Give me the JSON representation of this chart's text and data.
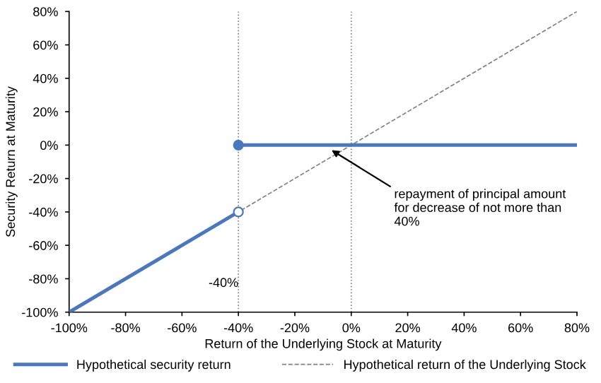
{
  "chart_data": {
    "type": "line",
    "xlabel": "Return of the Underlying Stock at Maturity",
    "ylabel": "Security Return at Maturity",
    "series": [
      {
        "name": "Hypothetical security return",
        "color": "#4a78c0",
        "x": [
          -100,
          -40
        ],
        "values": [
          -100,
          -40
        ],
        "line_style": "solid"
      },
      {
        "color": "#4a78c0",
        "x": [
          -40,
          80
        ],
        "values": [
          0,
          0
        ],
        "line_style": "solid"
      },
      {
        "name": "Hypothetical return of the Underlying Stock",
        "color": "#808080",
        "x": [
          -100,
          80
        ],
        "values": [
          -100,
          80
        ],
        "line_style": "dashed"
      },
      {
        "type": "scatter",
        "marker": "circle",
        "color": "#ffffff",
        "x": [
          -40
        ],
        "values": [
          -40
        ]
      },
      {
        "type": "scatter",
        "marker": "circle",
        "color": "#4a78c0",
        "x": [
          -40
        ],
        "values": [
          0
        ]
      }
    ],
    "xlim": [
      -100,
      80
    ],
    "ylim": [
      -100,
      80
    ],
    "xticks": [
      {
        "value": -100,
        "label": "-100%"
      },
      {
        "value": -80,
        "label": "-80%"
      },
      {
        "value": -60,
        "label": "-60%"
      },
      {
        "value": -40,
        "label": "-40%"
      },
      {
        "value": -20,
        "label": "-20%"
      },
      {
        "value": 0,
        "label": "0%"
      },
      {
        "value": 20,
        "label": "20%"
      },
      {
        "value": 40,
        "label": "40%"
      },
      {
        "value": 60,
        "label": "60%"
      },
      {
        "value": 80,
        "label": "80%"
      }
    ],
    "yticks": [
      {
        "value": -100,
        "label": "-100%"
      },
      {
        "value": -80,
        "label": "-80%"
      },
      {
        "value": -60,
        "label": "-60%"
      },
      {
        "value": -40,
        "label": "-40%"
      },
      {
        "value": -20,
        "label": "-20%"
      },
      {
        "value": 0,
        "label": "0%"
      },
      {
        "value": 20,
        "label": "20%"
      },
      {
        "value": 40,
        "label": "40%"
      },
      {
        "value": 60,
        "label": "60%"
      },
      {
        "value": 80,
        "label": "80%"
      }
    ],
    "ref_lines": [
      {
        "axis": "x",
        "value": -40,
        "label": "-40%",
        "color": "#808080",
        "line_style": "dotted"
      },
      {
        "axis": "x",
        "value": 0,
        "color": "#808080",
        "line_style": "dotted"
      }
    ],
    "annotations": [
      {
        "text": "repayment of principal amount\nfor decrease of not more than\n40%",
        "x": -7,
        "y": -3
      }
    ],
    "grid": false,
    "legend": "bottom"
  }
}
